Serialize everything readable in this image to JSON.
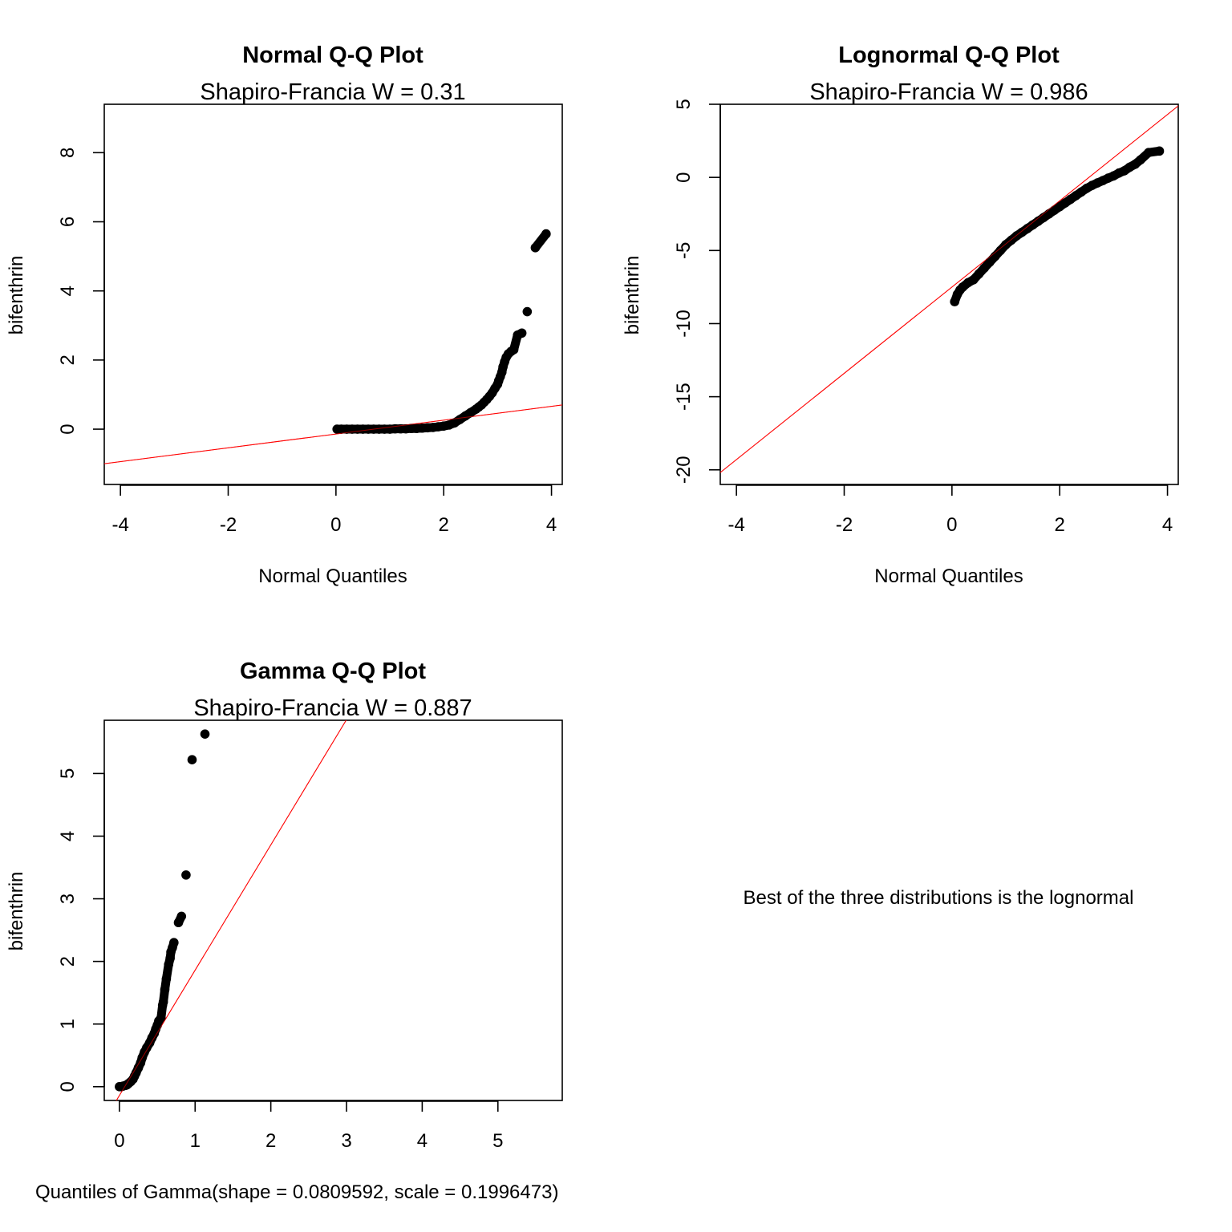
{
  "colors": {
    "points": "#000000",
    "fit_line": "#ff0000",
    "frame": "#000000",
    "background": "#ffffff"
  },
  "note": {
    "text": "Best of the three distributions is the lognormal"
  },
  "chart_data": [
    {
      "type": "scatter",
      "title": "Normal Q-Q Plot",
      "subtitle": "Shapiro-Francia W = 0.31",
      "xlabel": "Normal Quantiles",
      "ylabel": "bifenthrin",
      "xlim": [
        -4.3,
        4.2
      ],
      "ylim": [
        -1.6,
        9.4
      ],
      "xticks": [
        -4,
        -2,
        0,
        2,
        4
      ],
      "xtick_labels": [
        "-4",
        "-2",
        "0",
        "2",
        "4"
      ],
      "yticks": [
        0,
        2,
        4,
        6,
        8
      ],
      "ytick_labels": [
        "0",
        "2",
        "4",
        "6",
        "8"
      ],
      "fit_line": {
        "intercept": -0.14,
        "slope": 0.2
      },
      "series": [
        {
          "x": [
            0.02,
            0.1,
            0.2,
            0.3,
            0.4,
            0.5,
            0.6,
            0.7,
            0.8,
            0.9,
            1.0,
            1.1,
            1.2,
            1.3,
            1.4,
            1.5,
            1.6,
            1.7,
            1.8,
            1.9,
            2.0,
            2.1,
            2.2,
            2.3,
            2.4,
            2.5,
            2.6,
            2.65,
            2.7,
            2.75,
            2.8,
            2.85,
            2.9,
            2.95,
            3.0,
            3.02,
            3.05,
            3.08,
            3.1,
            3.13,
            3.16,
            3.2,
            3.25,
            3.3,
            3.37,
            3.45,
            3.55,
            3.7,
            3.9
          ],
          "y": [
            0.0,
            0.0,
            0.0,
            0.0,
            0.0,
            0.0,
            0.0,
            0.0,
            0.0,
            0.0,
            0.0,
            0.01,
            0.01,
            0.01,
            0.02,
            0.02,
            0.03,
            0.04,
            0.05,
            0.07,
            0.09,
            0.12,
            0.18,
            0.28,
            0.38,
            0.48,
            0.58,
            0.64,
            0.7,
            0.78,
            0.86,
            0.95,
            1.05,
            1.18,
            1.3,
            1.4,
            1.52,
            1.65,
            1.8,
            1.95,
            2.08,
            2.18,
            2.25,
            2.3,
            2.72,
            2.78,
            3.4,
            5.25,
            5.65
          ]
        }
      ]
    },
    {
      "type": "scatter",
      "title": "Lognormal Q-Q Plot",
      "subtitle": "Shapiro-Francia W = 0.986",
      "xlabel": "Normal Quantiles",
      "ylabel": "bifenthrin",
      "xlim": [
        -4.3,
        4.2
      ],
      "ylim": [
        -21,
        5
      ],
      "xticks": [
        -4,
        -2,
        0,
        2,
        4
      ],
      "xtick_labels": [
        "-4",
        "-2",
        "0",
        "2",
        "4"
      ],
      "yticks": [
        -20,
        -15,
        -10,
        -5,
        0,
        5
      ],
      "ytick_labels": [
        "-20",
        "-15",
        "-10",
        "-5",
        "0",
        "5"
      ],
      "fit_line": {
        "intercept": -7.5,
        "slope": 2.95
      },
      "series": [
        {
          "x": [
            0.05,
            0.1,
            0.15,
            0.2,
            0.3,
            0.4,
            0.5,
            0.6,
            0.7,
            0.8,
            0.9,
            1.0,
            1.1,
            1.2,
            1.3,
            1.4,
            1.5,
            1.6,
            1.7,
            1.8,
            1.9,
            2.0,
            2.1,
            2.2,
            2.3,
            2.4,
            2.5,
            2.6,
            2.7,
            2.8,
            2.9,
            3.0,
            3.1,
            3.2,
            3.3,
            3.4,
            3.5,
            3.65,
            3.85
          ],
          "y": [
            -8.5,
            -8.0,
            -7.7,
            -7.5,
            -7.2,
            -7.0,
            -6.6,
            -6.2,
            -5.8,
            -5.4,
            -5.0,
            -4.6,
            -4.3,
            -4.0,
            -3.75,
            -3.5,
            -3.25,
            -3.0,
            -2.75,
            -2.5,
            -2.25,
            -2.0,
            -1.75,
            -1.5,
            -1.25,
            -1.0,
            -0.75,
            -0.55,
            -0.38,
            -0.22,
            -0.05,
            0.1,
            0.3,
            0.45,
            0.7,
            0.9,
            1.2,
            1.7,
            1.8
          ]
        }
      ]
    },
    {
      "type": "scatter",
      "title": "Gamma Q-Q Plot",
      "subtitle": "Shapiro-Francia W = 0.887",
      "xlabel": "Quantiles of Gamma(shape = 0.0809592, scale = 0.1996473)",
      "ylabel": "bifenthrin",
      "xlim": [
        -0.2,
        5.85
      ],
      "ylim": [
        -0.22,
        5.85
      ],
      "xticks": [
        0,
        1,
        2,
        3,
        4,
        5
      ],
      "xtick_labels": [
        "0",
        "1",
        "2",
        "3",
        "4",
        "5"
      ],
      "yticks": [
        0,
        1,
        2,
        3,
        4,
        5
      ],
      "ytick_labels": [
        "0",
        "1",
        "2",
        "3",
        "4",
        "5"
      ],
      "fit_line": {
        "intercept": -0.14,
        "slope": 2.0
      },
      "series": [
        {
          "x": [
            0.0,
            0.02,
            0.05,
            0.08,
            0.1,
            0.12,
            0.15,
            0.18,
            0.2,
            0.22,
            0.25,
            0.28,
            0.3,
            0.33,
            0.36,
            0.4,
            0.43,
            0.46,
            0.48,
            0.5,
            0.52,
            0.55,
            0.57,
            0.58,
            0.6,
            0.62,
            0.65,
            0.67,
            0.68,
            0.7,
            0.72,
            0.78,
            0.82,
            0.88,
            0.96,
            1.13
          ],
          "y": [
            0.0,
            0.0,
            0.01,
            0.02,
            0.03,
            0.05,
            0.08,
            0.12,
            0.17,
            0.22,
            0.3,
            0.38,
            0.46,
            0.55,
            0.62,
            0.7,
            0.78,
            0.85,
            0.92,
            0.98,
            1.05,
            1.1,
            1.3,
            1.35,
            1.55,
            1.72,
            1.95,
            2.05,
            2.15,
            2.22,
            2.3,
            2.62,
            2.72,
            3.38,
            5.22,
            5.63
          ]
        }
      ]
    }
  ]
}
